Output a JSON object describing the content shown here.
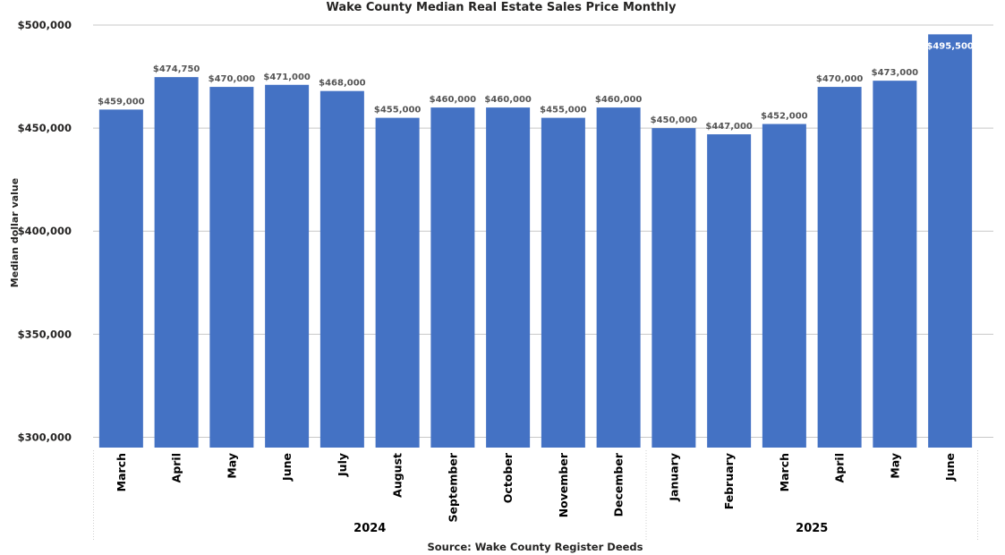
{
  "chart_data": {
    "type": "bar",
    "title": "Wake County Median Real Estate Sales Price Monthly",
    "ylabel": "Median dollar value",
    "source": "Source: Wake County Register Deeds",
    "ylim": [
      295000,
      500000
    ],
    "yticks": [
      300000,
      350000,
      400000,
      450000,
      500000
    ],
    "ytick_labels": [
      "$300,000",
      "$350,000",
      "$400,000",
      "$450,000",
      "$500,000"
    ],
    "bar_color": "#4472C4",
    "grid": true,
    "categories": [
      "March",
      "April",
      "May",
      "June",
      "July",
      "August",
      "September",
      "October",
      "November",
      "December",
      "January",
      "February",
      "March",
      "April",
      "May",
      "June"
    ],
    "values": [
      459000,
      474750,
      470000,
      471000,
      468000,
      455000,
      460000,
      460000,
      455000,
      460000,
      450000,
      447000,
      452000,
      470000,
      473000,
      495500
    ],
    "data_labels": [
      "$459,000",
      "$474,750",
      "$470,000",
      "$471,000",
      "$468,000",
      "$455,000",
      "$460,000",
      "$460,000",
      "$455,000",
      "$460,000",
      "$450,000",
      "$447,000",
      "$452,000",
      "$470,000",
      "$473,000",
      "$495,500"
    ],
    "groups": [
      {
        "label": "2024",
        "start": 0,
        "end": 9
      },
      {
        "label": "2025",
        "start": 10,
        "end": 15
      }
    ]
  }
}
